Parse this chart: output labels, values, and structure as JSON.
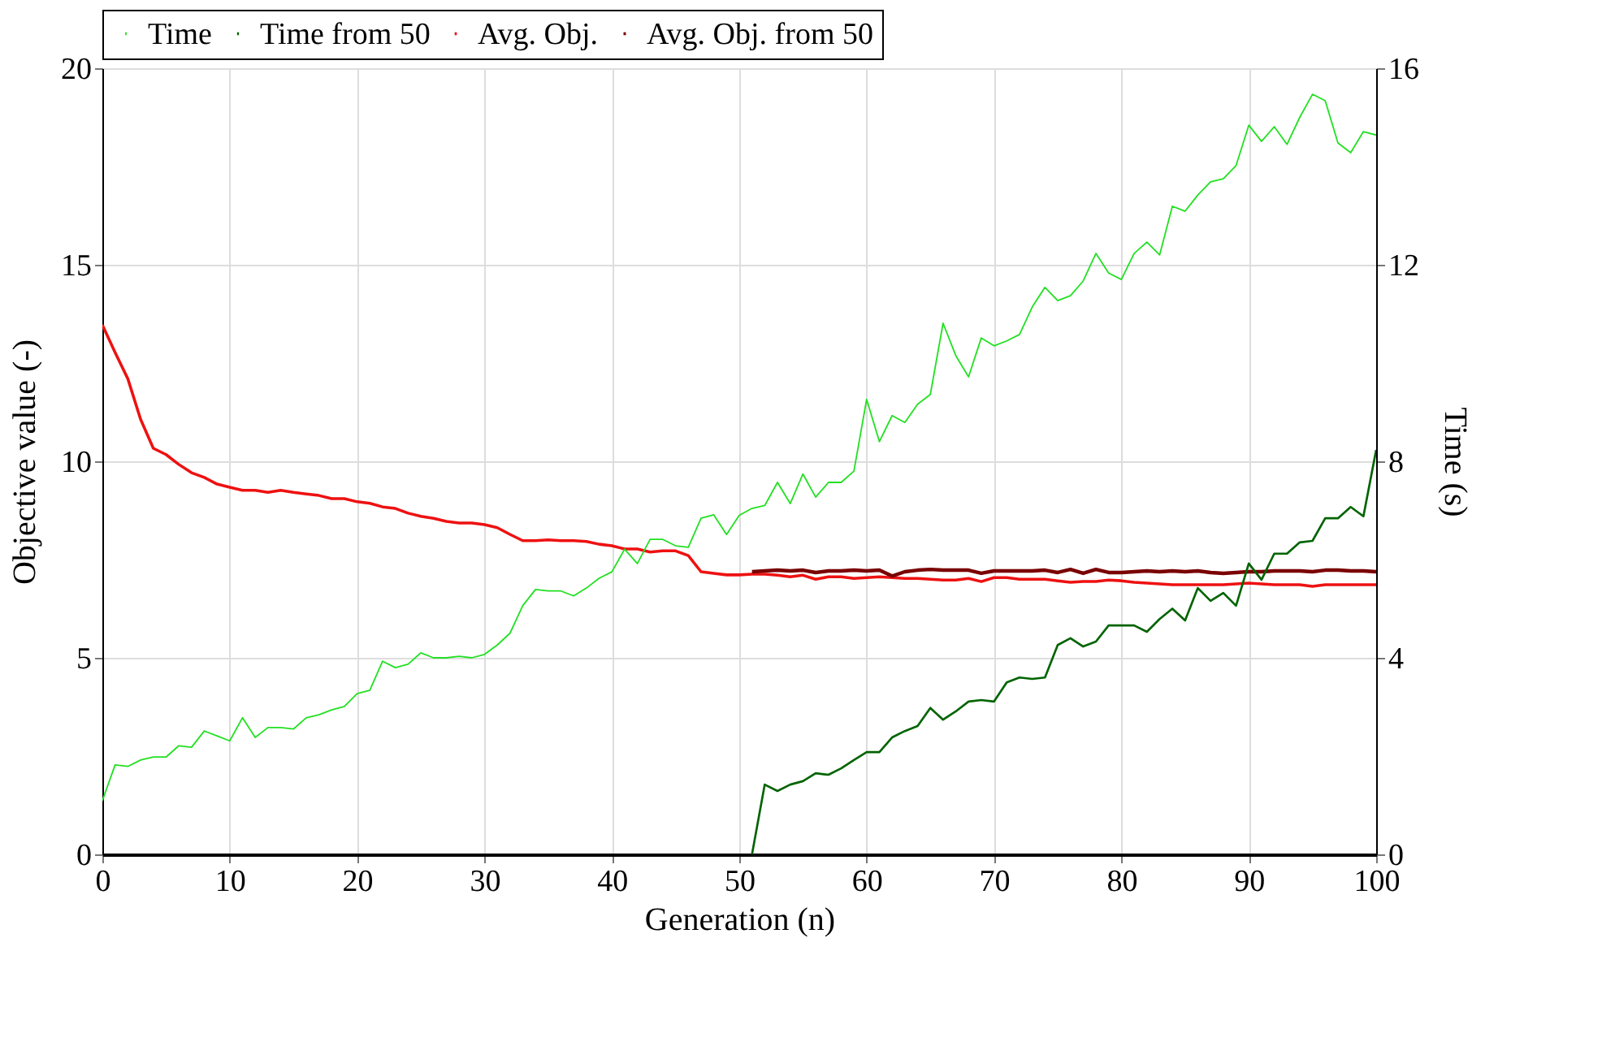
{
  "chart_data": {
    "type": "line",
    "xlabel": "Generation (n)",
    "ylabel": "Objective value (-)",
    "y2label": "Time (s)",
    "x": [
      0,
      1,
      2,
      3,
      4,
      5,
      6,
      7,
      8,
      9,
      10,
      11,
      12,
      13,
      14,
      15,
      16,
      17,
      18,
      19,
      20,
      21,
      22,
      23,
      24,
      25,
      26,
      27,
      28,
      29,
      30,
      31,
      32,
      33,
      34,
      35,
      36,
      37,
      38,
      39,
      40,
      41,
      42,
      43,
      44,
      45,
      46,
      47,
      48,
      49,
      50,
      51,
      52,
      53,
      54,
      55,
      56,
      57,
      58,
      59,
      60,
      61,
      62,
      63,
      64,
      65,
      66,
      67,
      68,
      69,
      70,
      71,
      72,
      73,
      74,
      75,
      76,
      77,
      78,
      79,
      80,
      81,
      82,
      83,
      84,
      85,
      86,
      87,
      88,
      89,
      90,
      91,
      92,
      93,
      94,
      95,
      96,
      97,
      98,
      99,
      100
    ],
    "series": [
      {
        "name": "Time",
        "color": "#22e022",
        "axis": "y2",
        "values": [
          1.09,
          1.82,
          1.79,
          1.92,
          1.98,
          1.98,
          2.21,
          2.18,
          2.51,
          2.41,
          2.31,
          2.78,
          2.38,
          2.58,
          2.58,
          2.55,
          2.78,
          2.84,
          2.94,
          3.01,
          3.27,
          3.34,
          3.93,
          3.8,
          3.87,
          4.1,
          4.0,
          4.0,
          4.03,
          4.0,
          4.07,
          4.26,
          4.5,
          5.06,
          5.39,
          5.36,
          5.36,
          5.26,
          5.42,
          5.62,
          5.75,
          6.21,
          5.92,
          6.41,
          6.41,
          6.28,
          6.25,
          6.84,
          6.91,
          6.51,
          6.9,
          7.04,
          7.1,
          7.57,
          7.14,
          7.74,
          7.27,
          7.57,
          7.57,
          7.8,
          9.26,
          8.4,
          8.93,
          8.79,
          9.16,
          9.36,
          10.81,
          10.15,
          9.72,
          10.51,
          10.35,
          10.45,
          10.58,
          11.14,
          11.54,
          11.27,
          11.37,
          11.67,
          12.23,
          11.83,
          11.7,
          12.23,
          12.46,
          12.2,
          13.19,
          13.09,
          13.42,
          13.69,
          13.75,
          14.02,
          14.84,
          14.51,
          14.81,
          14.45,
          15.0,
          15.47,
          15.34,
          14.48,
          14.28,
          14.71,
          14.64
        ]
      },
      {
        "name": "Time from 50",
        "color": "#006400",
        "axis": "y2",
        "x": [
          51,
          52,
          53,
          54,
          55,
          56,
          57,
          58,
          59,
          60,
          61,
          62,
          63,
          64,
          65,
          66,
          67,
          68,
          69,
          70,
          71,
          72,
          73,
          74,
          75,
          76,
          77,
          78,
          79,
          80,
          81,
          82,
          83,
          84,
          85,
          86,
          87,
          88,
          89,
          90,
          91,
          92,
          93,
          94,
          95,
          96,
          97,
          98,
          99,
          100
        ],
        "values": [
          0,
          1.42,
          1.29,
          1.42,
          1.49,
          1.65,
          1.62,
          1.75,
          1.92,
          2.08,
          2.08,
          2.38,
          2.51,
          2.61,
          2.98,
          2.74,
          2.91,
          3.11,
          3.14,
          3.11,
          3.5,
          3.6,
          3.57,
          3.6,
          4.26,
          4.4,
          4.23,
          4.33,
          4.66,
          4.66,
          4.66,
          4.53,
          4.79,
          5.0,
          4.76,
          5.42,
          5.16,
          5.32,
          5.06,
          5.92,
          5.59,
          6.12,
          6.12,
          6.35,
          6.38,
          6.84,
          6.84,
          7.07,
          6.88,
          8.23
        ]
      },
      {
        "name": "Avg. Obj.",
        "color": "#ee1111",
        "values": [
          13.47,
          12.77,
          12.1,
          11.07,
          10.33,
          10.17,
          9.92,
          9.71,
          9.59,
          9.42,
          9.34,
          9.26,
          9.26,
          9.21,
          9.26,
          9.21,
          9.17,
          9.13,
          9.05,
          9.05,
          8.97,
          8.93,
          8.84,
          8.8,
          8.68,
          8.6,
          8.55,
          8.47,
          8.43,
          8.43,
          8.39,
          8.31,
          8.14,
          7.98,
          7.98,
          8.0,
          7.98,
          7.98,
          7.96,
          7.89,
          7.85,
          7.77,
          7.77,
          7.69,
          7.72,
          7.72,
          7.6,
          7.19,
          7.15,
          7.11,
          7.11,
          7.13,
          7.13,
          7.1,
          7.06,
          7.1,
          7.0,
          7.06,
          7.06,
          7.02,
          7.04,
          7.06,
          7.04,
          7.02,
          7.02,
          7.0,
          6.98,
          6.98,
          7.02,
          6.94,
          7.04,
          7.04,
          7.0,
          7.0,
          7.0,
          6.96,
          6.92,
          6.94,
          6.94,
          6.98,
          6.96,
          6.92,
          6.9,
          6.88,
          6.86,
          6.86,
          6.86,
          6.86,
          6.86,
          6.88,
          6.9,
          6.88,
          6.86,
          6.86,
          6.86,
          6.82,
          6.86,
          6.86,
          6.86,
          6.86,
          6.86
        ]
      },
      {
        "name": "Avg. Obj. from 50",
        "color": "#7a0000",
        "x": [
          51,
          52,
          53,
          54,
          55,
          56,
          57,
          58,
          59,
          60,
          61,
          62,
          63,
          64,
          65,
          66,
          67,
          68,
          69,
          70,
          71,
          72,
          73,
          74,
          75,
          76,
          77,
          78,
          79,
          80,
          81,
          82,
          83,
          84,
          85,
          86,
          87,
          88,
          89,
          90,
          91,
          92,
          93,
          94,
          95,
          96,
          97,
          98,
          99,
          100
        ],
        "values": [
          7.19,
          7.21,
          7.23,
          7.21,
          7.23,
          7.17,
          7.21,
          7.21,
          7.23,
          7.21,
          7.23,
          7.08,
          7.19,
          7.23,
          7.25,
          7.23,
          7.23,
          7.23,
          7.15,
          7.21,
          7.21,
          7.21,
          7.21,
          7.23,
          7.17,
          7.25,
          7.15,
          7.25,
          7.17,
          7.17,
          7.19,
          7.21,
          7.19,
          7.21,
          7.19,
          7.21,
          7.17,
          7.15,
          7.17,
          7.19,
          7.19,
          7.21,
          7.21,
          7.21,
          7.19,
          7.23,
          7.23,
          7.21,
          7.21,
          7.19
        ]
      }
    ],
    "xlim": [
      0,
      100
    ],
    "xticks": [
      0,
      10,
      20,
      30,
      40,
      50,
      60,
      70,
      80,
      90,
      100
    ],
    "ylim": [
      0,
      20
    ],
    "yticks": [
      0,
      5,
      10,
      15,
      20
    ],
    "y2lim": [
      0,
      16
    ],
    "y2ticks": [
      0,
      4,
      8,
      12,
      16
    ],
    "grid": true,
    "legend": "top",
    "marker": "none",
    "line_style": "solid"
  }
}
